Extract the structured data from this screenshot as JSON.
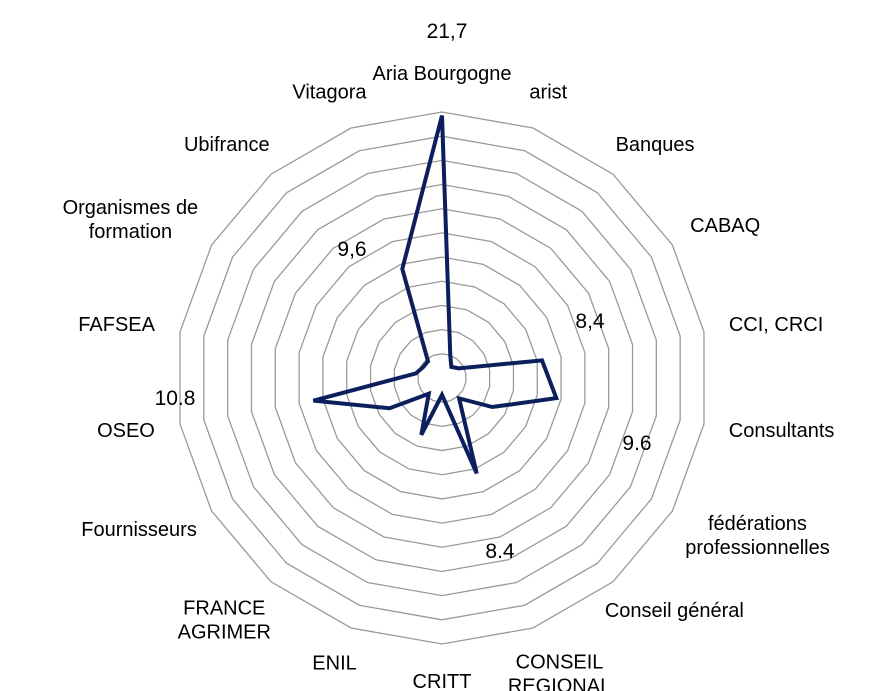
{
  "chart_data": {
    "type": "radar",
    "categories": [
      "Aria Bourgogne",
      "arist",
      "Banques",
      "CABAQ",
      "CCI, CRCI",
      "Consultants",
      "fédérations\nprofessionnelles",
      "Conseil général",
      "CONSEIL\nREGIONAL",
      "CRITT",
      "ENIL",
      "FRANCE\nAGRIMER",
      "Fournisseurs",
      "OSEO",
      "FAFSEA",
      "Organismes de\nformation",
      "Ubifrance",
      "Vitagora"
    ],
    "values": [
      21.7,
      2,
      1.2,
      1.6,
      8.4,
      9.6,
      4.8,
      2.2,
      8.4,
      1.4,
      5,
      1.7,
      5,
      10.8,
      2.2,
      1.8,
      1.8,
      9.6
    ],
    "value_labels": [
      "21,7",
      null,
      null,
      null,
      "8,4",
      "9.6",
      null,
      null,
      "8.4",
      null,
      null,
      null,
      null,
      "10.8",
      null,
      null,
      null,
      "9,6"
    ],
    "color": "#0c1f5c",
    "ylim": [
      0,
      22
    ],
    "yticks": [
      2,
      4,
      6,
      8,
      10,
      12,
      14,
      16,
      18,
      20,
      22
    ],
    "grid": true
  }
}
